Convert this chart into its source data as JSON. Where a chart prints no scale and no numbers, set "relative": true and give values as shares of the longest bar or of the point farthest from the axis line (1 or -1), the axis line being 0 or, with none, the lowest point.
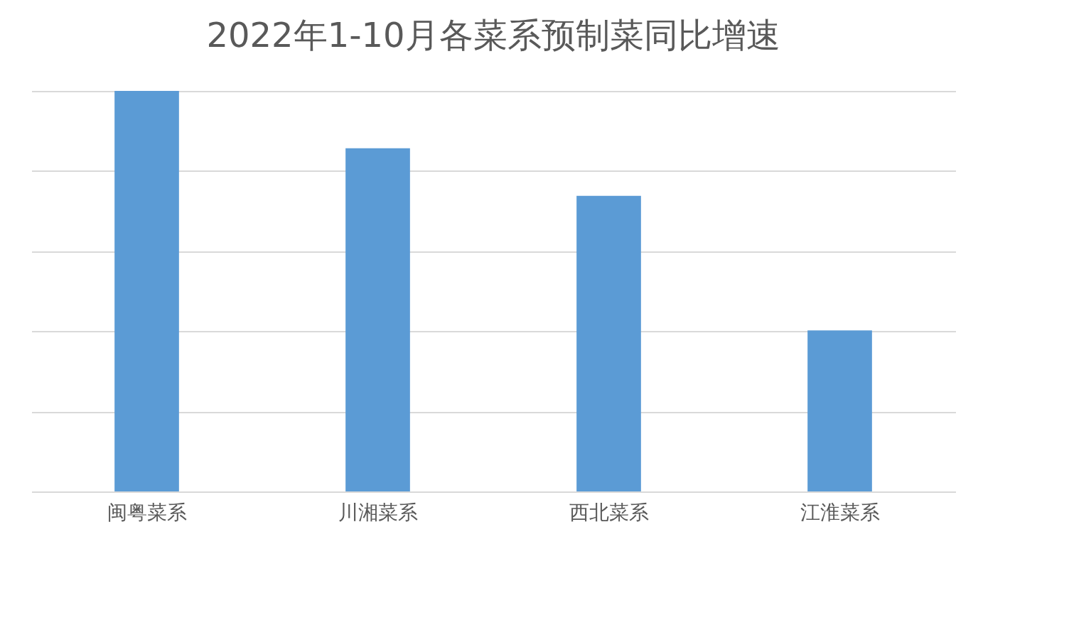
{
  "chart_data": {
    "type": "bar",
    "title": "2022年1-10月各菜系预制菜同比增速",
    "categories": [
      "闽粤菜系",
      "川湘菜系",
      "西北菜系",
      "江淮菜系"
    ],
    "values": [
      1,
      0.857,
      0.738,
      0.402
    ],
    "color": "#5b9bd5",
    "relative": true,
    "grid": "y"
  }
}
